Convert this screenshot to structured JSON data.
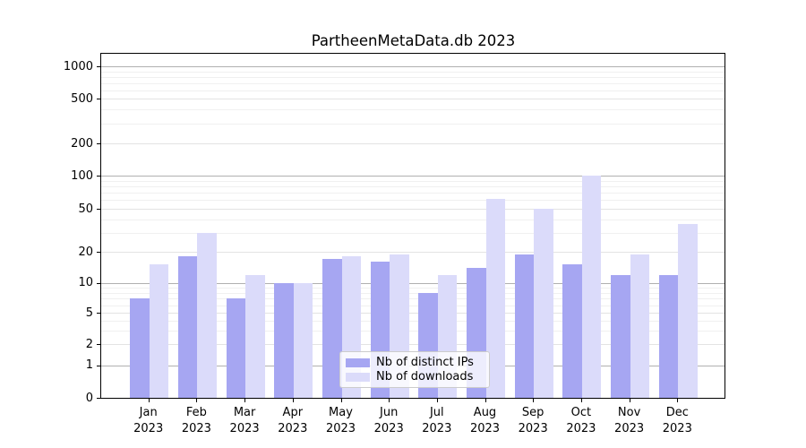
{
  "title": "PartheenMetaData.db 2023",
  "chart_data": {
    "type": "bar",
    "title": "PartheenMetaData.db 2023",
    "categories": [
      "Jan 2023",
      "Feb 2023",
      "Mar 2023",
      "Apr 2023",
      "May 2023",
      "Jun 2023",
      "Jul 2023",
      "Aug 2023",
      "Sep 2023",
      "Oct 2023",
      "Nov 2023",
      "Dec 2023"
    ],
    "series": [
      {
        "name": "Nb of distinct IPs",
        "color": "#a6a6f2",
        "values": [
          7,
          18,
          7,
          10,
          17,
          16,
          8,
          14,
          19,
          15,
          12,
          12
        ]
      },
      {
        "name": "Nb of downloads",
        "color": "#dbdbfa",
        "values": [
          15,
          30,
          12,
          10,
          18,
          19,
          12,
          62,
          50,
          101,
          19,
          36
        ]
      }
    ],
    "xlabel": "",
    "ylabel": "",
    "yscale": "symlog",
    "yticks": [
      0,
      1,
      2,
      5,
      10,
      20,
      50,
      100,
      200,
      500,
      1000
    ],
    "ylim": [
      0,
      1300
    ],
    "grid": true,
    "legend_position": "lower center",
    "colors": {
      "grid_major": "#b0b0b0",
      "grid_minor": "#f0f0f0",
      "axis": "#000000",
      "background": "#ffffff"
    }
  }
}
